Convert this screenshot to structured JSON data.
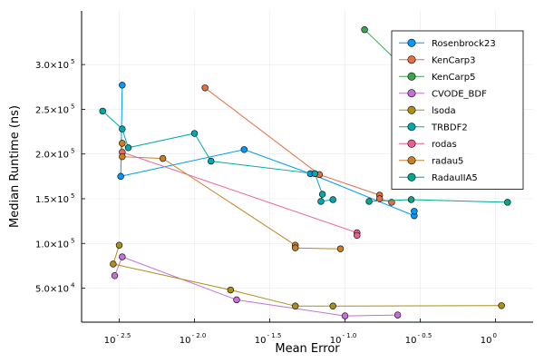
{
  "chart_data": {
    "type": "line",
    "xlabel": "Mean Error",
    "ylabel": "Median Runtime (ns)",
    "xscale": "log10",
    "xlim_log10": [
      -2.75,
      0.25
    ],
    "ylim": [
      12000,
      360000
    ],
    "grid": true,
    "legend_position": "top-right",
    "x_ticks": [
      {
        "value": -2.5,
        "label": "10",
        "exp": "- 2.5"
      },
      {
        "value": -2.0,
        "label": "10",
        "exp": "- 2.0"
      },
      {
        "value": -1.5,
        "label": "10",
        "exp": "- 1.5"
      },
      {
        "value": -1.0,
        "label": "10",
        "exp": "- 1.0"
      },
      {
        "value": -0.5,
        "label": "10",
        "exp": "- 0.5"
      },
      {
        "value": 0.0,
        "label": "10",
        "exp": "0"
      }
    ],
    "y_ticks": [
      {
        "value": 50000,
        "label": "5.0×10",
        "exp": "4"
      },
      {
        "value": 100000,
        "label": "1.0×10",
        "exp": "5"
      },
      {
        "value": 150000,
        "label": "1.5×10",
        "exp": "5"
      },
      {
        "value": 200000,
        "label": "2.0×10",
        "exp": "5"
      },
      {
        "value": 250000,
        "label": "2.5×10",
        "exp": "5"
      },
      {
        "value": 300000,
        "label": "3.0×10",
        "exp": "5"
      }
    ],
    "series": [
      {
        "name": "Rosenbrock23",
        "color": "#009AFA",
        "points": [
          [
            -2.48,
            277000
          ],
          [
            -2.49,
            175000
          ],
          [
            -1.67,
            205000
          ],
          [
            -1.23,
            178000
          ],
          [
            -0.54,
            131000
          ],
          [
            -0.54,
            136000
          ]
        ]
      },
      {
        "name": "KenCarp3",
        "color": "#E36F47",
        "points": [
          [
            -1.93,
            274000
          ],
          [
            -1.17,
            177000
          ],
          [
            -0.77,
            154000
          ],
          [
            -0.77,
            150000
          ],
          [
            -0.69,
            146000
          ]
        ]
      },
      {
        "name": "KenCarp5",
        "color": "#3EA44E",
        "points": [
          [
            -0.87,
            339000
          ],
          [
            -0.63,
            300000
          ]
        ]
      },
      {
        "name": "CVODE_BDF",
        "color": "#C371D2",
        "points": [
          [
            -2.53,
            64000
          ],
          [
            -2.48,
            85000
          ],
          [
            -1.72,
            37000
          ],
          [
            -1.0,
            19000
          ],
          [
            -0.65,
            20000
          ]
        ]
      },
      {
        "name": "lsoda",
        "color": "#AC8E18",
        "points": [
          [
            -2.5,
            98000
          ],
          [
            -2.54,
            77000
          ],
          [
            -1.76,
            48000
          ],
          [
            -1.33,
            30000
          ],
          [
            -1.08,
            30000
          ],
          [
            0.04,
            30500
          ]
        ]
      },
      {
        "name": "TRBDF2",
        "color": "#00A9AD",
        "points": [
          [
            -2.61,
            248000
          ],
          [
            -2.48,
            228000
          ],
          [
            -2.44,
            207000
          ],
          [
            -2.0,
            223000
          ],
          [
            -1.89,
            192000
          ],
          [
            -1.2,
            178000
          ],
          [
            -1.15,
            155000
          ],
          [
            -1.16,
            147000
          ],
          [
            -1.08,
            149000
          ]
        ]
      },
      {
        "name": "rodas",
        "color": "#ED5D92",
        "points": [
          [
            -2.48,
            202000
          ],
          [
            -0.92,
            112000
          ],
          [
            -0.92,
            109000
          ]
        ]
      },
      {
        "name": "radau5",
        "color": "#C68125",
        "points": [
          [
            -2.48,
            212000
          ],
          [
            -2.48,
            197000
          ],
          [
            -2.21,
            195000
          ],
          [
            -1.33,
            98000
          ],
          [
            -1.33,
            95000
          ],
          [
            -1.03,
            94000
          ]
        ]
      },
      {
        "name": "RadauIIA5",
        "color": "#00A98D",
        "points": [
          [
            -0.84,
            147000
          ],
          [
            -0.56,
            149000
          ],
          [
            0.08,
            146000
          ]
        ]
      }
    ]
  }
}
